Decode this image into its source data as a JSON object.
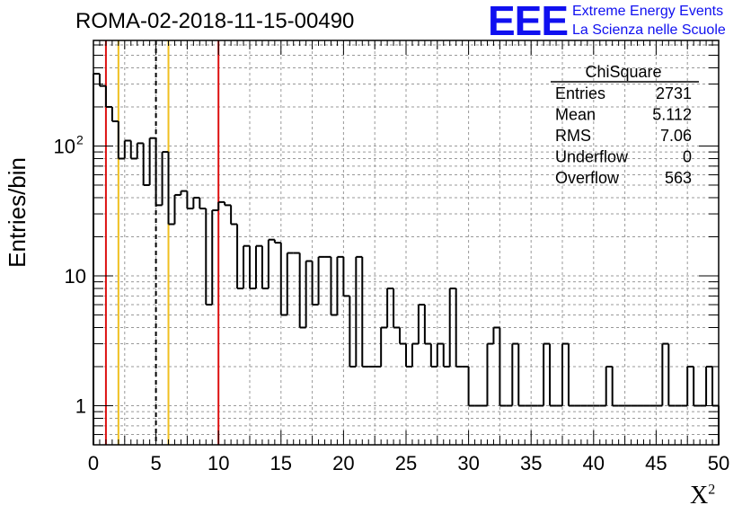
{
  "page": {
    "title": "ROMA-02-2018-11-15-00490",
    "logo": {
      "text": "EEE",
      "line1": "Extreme Energy Events",
      "line2": "La Scienza nelle Scuole"
    },
    "ylabel": "Entries/bin",
    "xlabel": "X",
    "xlabel_sup": "2"
  },
  "stats": {
    "title": "ChiSquare",
    "rows": [
      {
        "label": "Entries",
        "value": "2731"
      },
      {
        "label": "Mean",
        "value": "5.112"
      },
      {
        "label": "RMS",
        "value": "7.06"
      },
      {
        "label": "Underflow",
        "value": "0"
      },
      {
        "label": "Overflow",
        "value": "563"
      }
    ]
  },
  "chart_data": {
    "type": "histogram",
    "xlim": [
      0,
      50
    ],
    "ylim": [
      0.5,
      650
    ],
    "yscale": "log",
    "bin_width": 0.5,
    "grid": true,
    "xticks": [
      0,
      5,
      10,
      15,
      20,
      25,
      30,
      35,
      40,
      45,
      50
    ],
    "yticks": [
      {
        "value": 1,
        "label": "1"
      },
      {
        "value": 10,
        "label": "10"
      },
      {
        "value": 100,
        "label": "10",
        "sup": "2"
      }
    ],
    "values": [
      360,
      290,
      200,
      155,
      80,
      110,
      80,
      105,
      50,
      115,
      35,
      90,
      25,
      42,
      45,
      33,
      40,
      33,
      6,
      32,
      37,
      35,
      25,
      8,
      17,
      8,
      17,
      8,
      19,
      18,
      5,
      15,
      15,
      4,
      13,
      6,
      14,
      14,
      5,
      14,
      7,
      2,
      14,
      2,
      2,
      2,
      4,
      8,
      4,
      3,
      2,
      3,
      6,
      3,
      2,
      3,
      2,
      8,
      2,
      2,
      1,
      1,
      1,
      3,
      4,
      1,
      1,
      3,
      1,
      1,
      1,
      1,
      3,
      1,
      1,
      3,
      1,
      1,
      1,
      1,
      1,
      1,
      2,
      1,
      1,
      1,
      1,
      1,
      1,
      1,
      1,
      3,
      1,
      1,
      1,
      2,
      1,
      1,
      2,
      1
    ],
    "vlines": [
      {
        "x": 1,
        "color": "#dd1111",
        "style": "solid"
      },
      {
        "x": 2,
        "color": "#f0c020",
        "style": "solid"
      },
      {
        "x": 5,
        "color": "#000000",
        "style": "dashed"
      },
      {
        "x": 6,
        "color": "#f0c020",
        "style": "solid"
      },
      {
        "x": 10,
        "color": "#dd1111",
        "style": "solid"
      }
    ]
  }
}
